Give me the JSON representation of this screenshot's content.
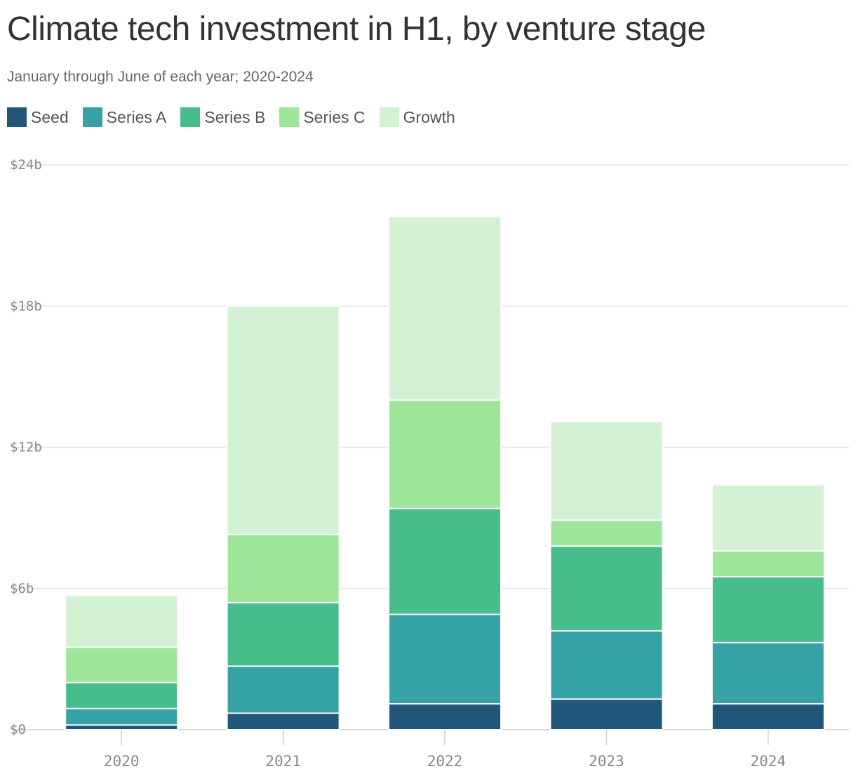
{
  "chart_data": {
    "type": "bar",
    "stacked": true,
    "title": "Climate tech investment in H1, by venture stage",
    "subtitle": "January through June of each year; 2020-2024",
    "categories": [
      "2020",
      "2021",
      "2022",
      "2023",
      "2024"
    ],
    "series": [
      {
        "name": "Seed",
        "color": "#21567a",
        "values": [
          0.2,
          0.7,
          1.1,
          1.3,
          1.1
        ]
      },
      {
        "name": "Series A",
        "color": "#37a2a6",
        "values": [
          0.7,
          2.0,
          3.8,
          2.9,
          2.6
        ]
      },
      {
        "name": "Series B",
        "color": "#48bd8c",
        "values": [
          1.1,
          2.7,
          4.5,
          3.6,
          2.8
        ]
      },
      {
        "name": "Series C",
        "color": "#9ee699",
        "values": [
          1.5,
          2.9,
          4.6,
          1.1,
          1.1
        ]
      },
      {
        "name": "Growth",
        "color": "#d3f1d3",
        "values": [
          2.2,
          9.7,
          7.8,
          4.2,
          2.8
        ]
      }
    ],
    "y_ticks": [
      "$0",
      "$6b",
      "$12b",
      "$18b",
      "$24b"
    ],
    "y_tick_values": [
      0,
      6,
      12,
      18,
      24
    ],
    "ylim": [
      0,
      24
    ],
    "xlabel": "",
    "ylabel": "",
    "grid": true,
    "legend_position": "top-left"
  }
}
